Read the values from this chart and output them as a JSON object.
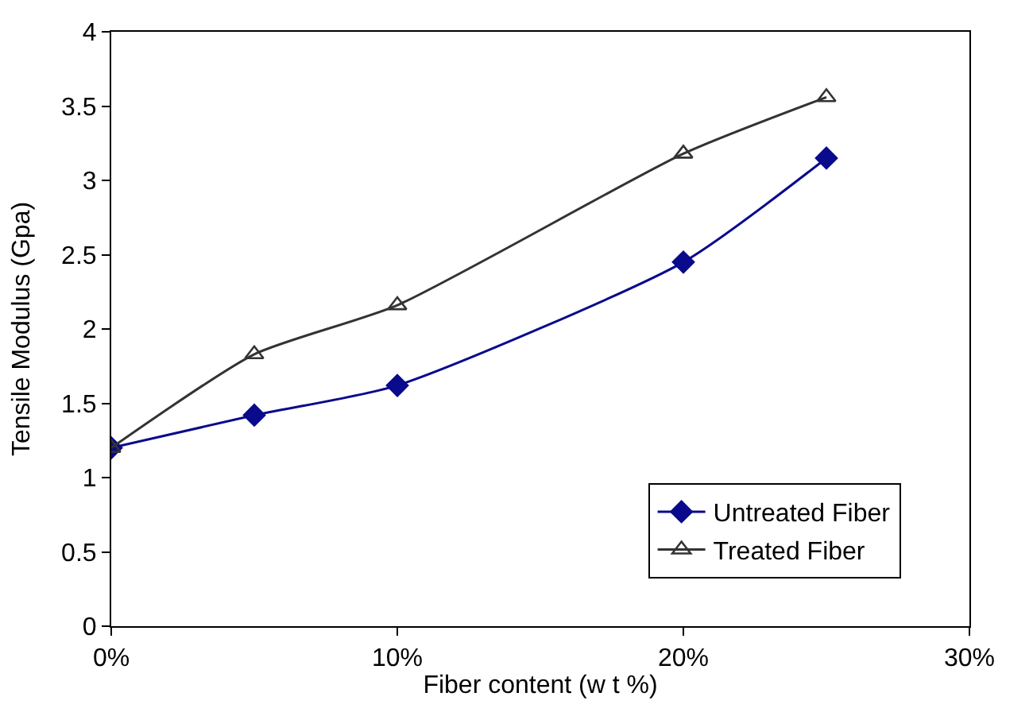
{
  "chart_data": {
    "type": "line",
    "xlabel": "Fiber content (w t %)",
    "ylabel": "Tensile Modulus (Gpa)",
    "x": [
      0,
      5,
      10,
      20,
      25
    ],
    "series": [
      {
        "name": "Untreated Fiber",
        "color": "#0a0a8c",
        "marker": "diamond",
        "values": [
          1.2,
          1.42,
          1.62,
          2.45,
          3.15
        ]
      },
      {
        "name": "Treated Fiber",
        "color": "#333333",
        "marker": "triangle",
        "values": [
          1.2,
          1.83,
          2.16,
          3.18,
          3.56
        ]
      }
    ],
    "xlim": [
      0,
      30
    ],
    "xticks": [
      {
        "value": 0,
        "label": "0%"
      },
      {
        "value": 10,
        "label": "10%"
      },
      {
        "value": 20,
        "label": "20%"
      },
      {
        "value": 30,
        "label": "30%"
      }
    ],
    "ylim": [
      0,
      4
    ],
    "yticks": [
      0,
      0.5,
      1,
      1.5,
      2,
      2.5,
      3,
      3.5,
      4
    ],
    "legend": "bottom right",
    "line_style": "solid"
  }
}
